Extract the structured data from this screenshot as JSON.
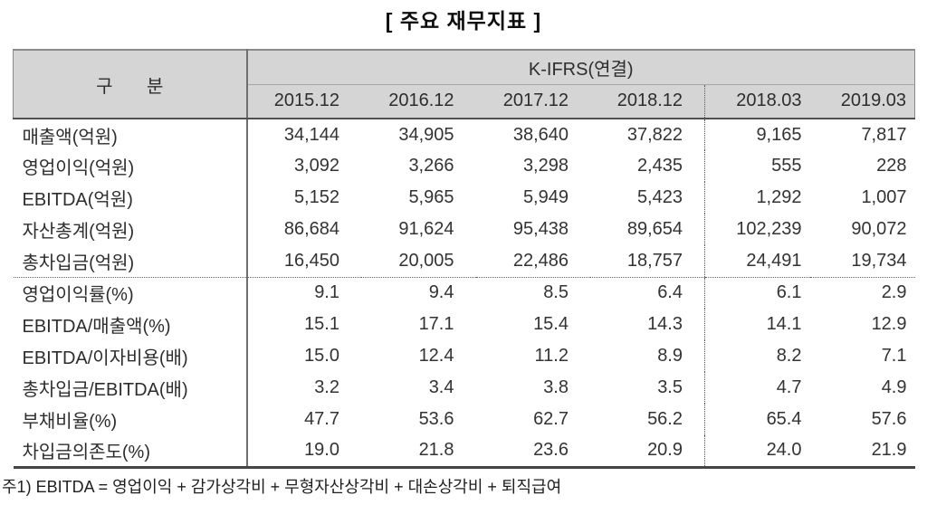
{
  "title": "[ 주요 재무지표 ]",
  "table": {
    "corner_label": "구 분",
    "group_header": "K-IFRS(연결)",
    "columns": [
      "2015.12",
      "2016.12",
      "2017.12",
      "2018.12",
      "2018.03",
      "2019.03"
    ],
    "quarter_start_index": 4,
    "section_break_after_row": 4,
    "rows": [
      {
        "label": "매출액(억원)",
        "values": [
          "34,144",
          "34,905",
          "38,640",
          "37,822",
          "9,165",
          "7,817"
        ]
      },
      {
        "label": "영업이익(억원)",
        "values": [
          "3,092",
          "3,266",
          "3,298",
          "2,435",
          "555",
          "228"
        ]
      },
      {
        "label": "EBITDA(억원)",
        "values": [
          "5,152",
          "5,965",
          "5,949",
          "5,423",
          "1,292",
          "1,007"
        ]
      },
      {
        "label": "자산총계(억원)",
        "values": [
          "86,684",
          "91,624",
          "95,438",
          "89,654",
          "102,239",
          "90,072"
        ]
      },
      {
        "label": "총차입금(억원)",
        "values": [
          "16,450",
          "20,005",
          "22,486",
          "18,757",
          "24,491",
          "19,734"
        ]
      },
      {
        "label": "영업이익률(%)",
        "values": [
          "9.1",
          "9.4",
          "8.5",
          "6.4",
          "6.1",
          "2.9"
        ]
      },
      {
        "label": "EBITDA/매출액(%)",
        "values": [
          "15.1",
          "17.1",
          "15.4",
          "14.3",
          "14.1",
          "12.9"
        ]
      },
      {
        "label": "EBITDA/이자비용(배)",
        "values": [
          "15.0",
          "12.4",
          "11.2",
          "8.9",
          "8.2",
          "7.1"
        ]
      },
      {
        "label": "총차입금/EBITDA(배)",
        "values": [
          "3.2",
          "3.4",
          "3.8",
          "3.5",
          "4.7",
          "4.9"
        ]
      },
      {
        "label": "부채비율(%)",
        "values": [
          "47.7",
          "53.6",
          "62.7",
          "56.2",
          "65.4",
          "57.6"
        ]
      },
      {
        "label": "차입금의존도(%)",
        "values": [
          "19.0",
          "21.8",
          "23.6",
          "20.9",
          "24.0",
          "21.9"
        ]
      }
    ]
  },
  "footnote": "주1) EBITDA = 영업이익 + 감가상각비 + 무형자산상각비 + 대손상각비 + 퇴직급여",
  "colors": {
    "header_bg": "#d5d5d5",
    "border_dark": "#4f4f4f",
    "border_mid": "#6f6f6f",
    "border_light": "#8a8a8a",
    "dotted_line": "#555555",
    "text": "#2d2d2d"
  }
}
